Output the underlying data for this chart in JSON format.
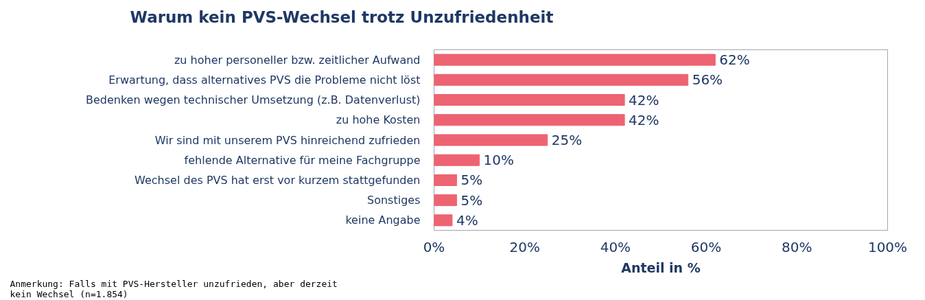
{
  "chart_data": {
    "type": "bar",
    "orientation": "horizontal",
    "title": "Warum kein PVS-Wechsel trotz Unzufriedenheit",
    "xlabel": "Anteil in %",
    "categories": [
      "zu hoher personeller bzw. zeitlicher Aufwand",
      "Erwartung, dass alternatives PVS die Probleme nicht löst",
      "Bedenken wegen technischer Umsetzung (z.B. Datenverlust)",
      "zu hohe Kosten",
      "Wir sind mit unserem PVS hinreichend zufrieden",
      "fehlende Alternative für meine Fachgruppe",
      "Wechsel des PVS hat erst vor kurzem stattgefunden",
      "Sonstiges",
      "keine Angabe"
    ],
    "values": [
      62,
      56,
      42,
      42,
      25,
      10,
      5,
      5,
      4
    ],
    "value_labels": [
      "62%",
      "56%",
      "42%",
      "42%",
      "25%",
      "10%",
      "5%",
      "5%",
      "4%"
    ],
    "color": "#ee6372",
    "xlim": [
      0,
      100
    ],
    "xticks": [
      {
        "value": 0,
        "label": "0%"
      },
      {
        "value": 20,
        "label": "20%"
      },
      {
        "value": 40,
        "label": "40%"
      },
      {
        "value": 60,
        "label": "60%"
      },
      {
        "value": 80,
        "label": "80%"
      },
      {
        "value": 100,
        "label": "100%"
      }
    ],
    "grid": false,
    "annotations": [
      "Anmerkung: Falls mit PVS-Hersteller unzufrieden, aber derzeit kein Wechsel (n=1.854)"
    ]
  }
}
